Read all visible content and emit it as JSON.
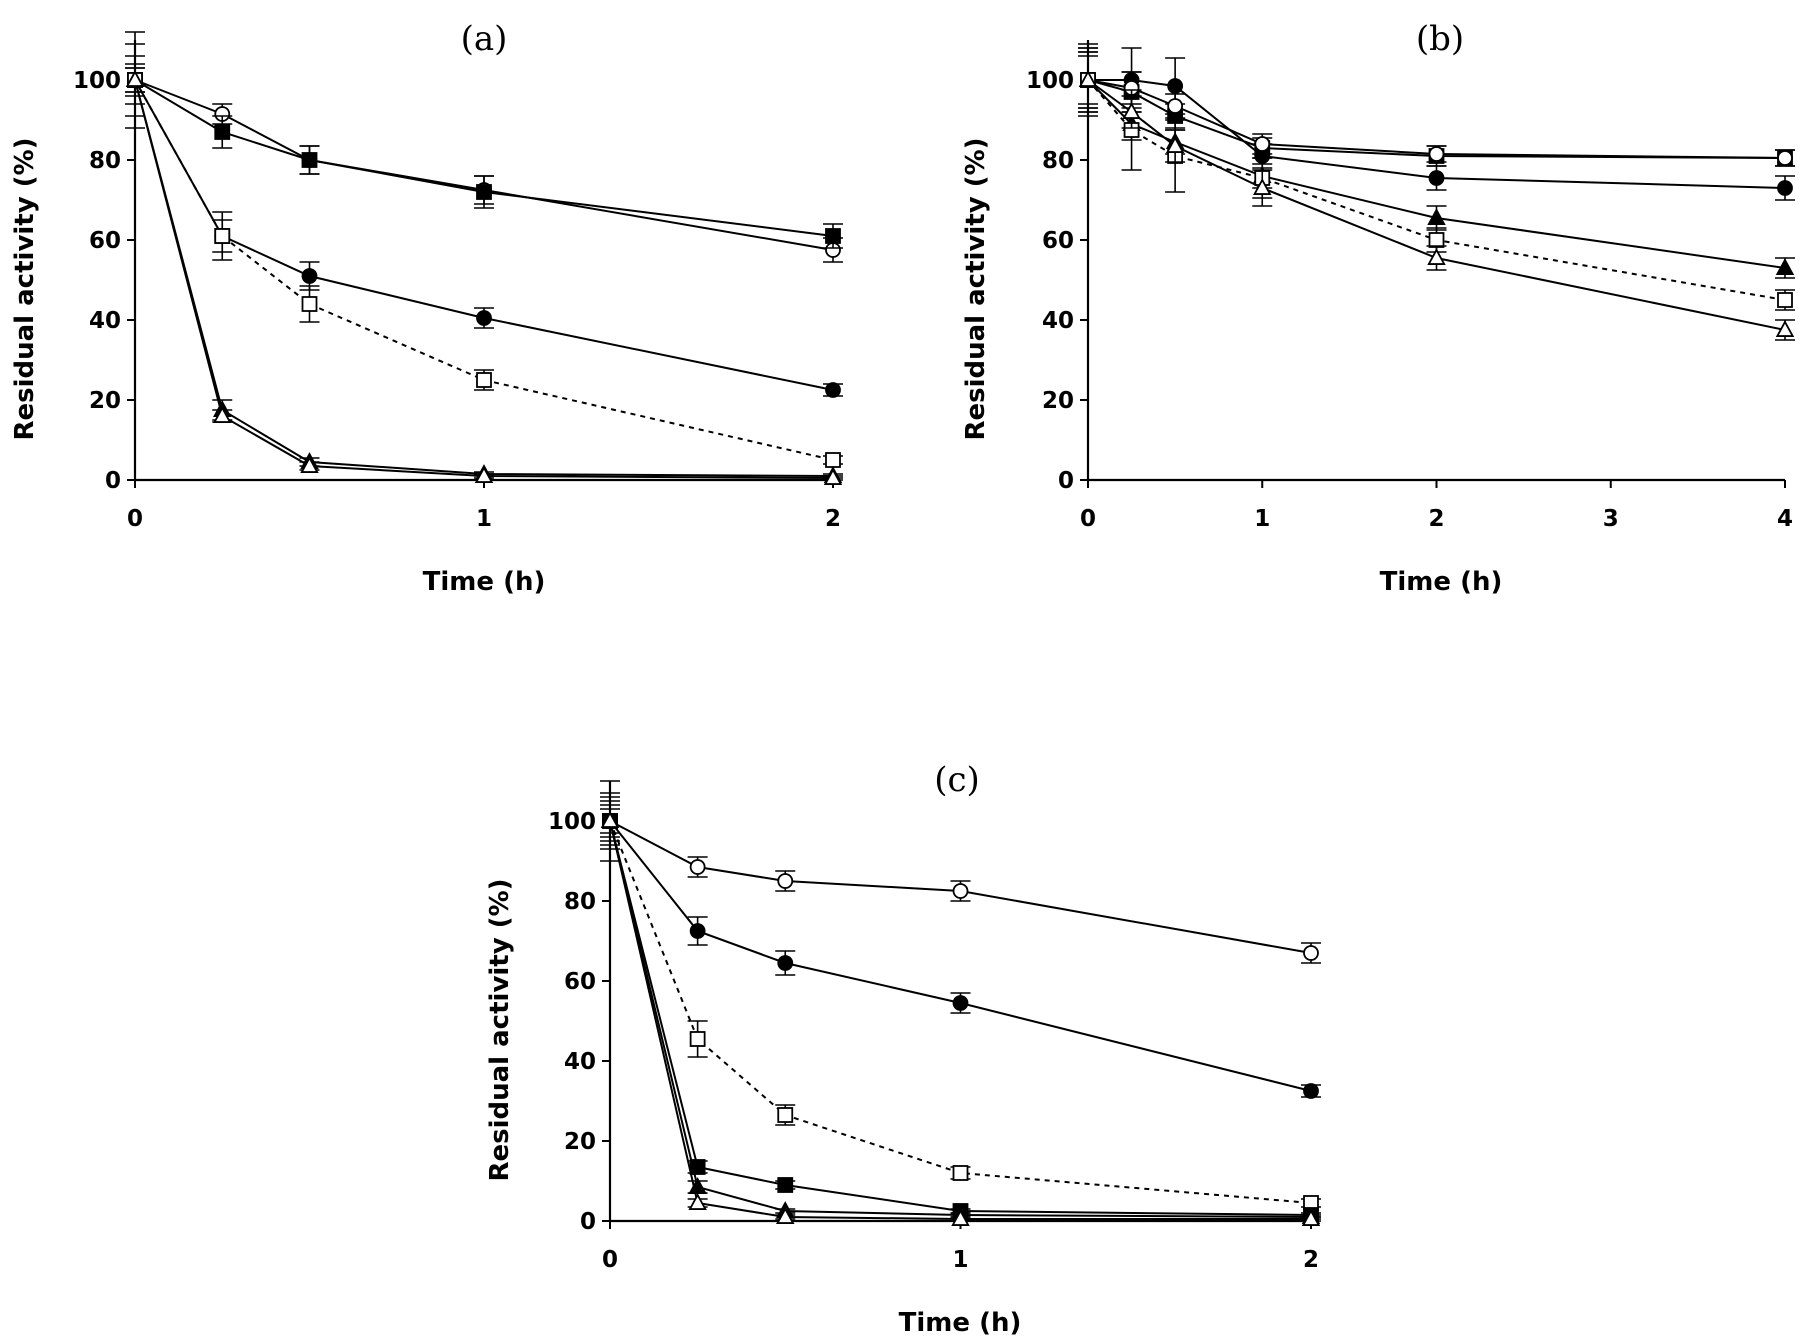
{
  "chart_data": [
    {
      "type": "line",
      "title": "(a)",
      "xlabel": "Time (h)",
      "ylabel": "Residual activity (%)",
      "xlim": [
        0,
        2
      ],
      "ylim": [
        0,
        110
      ],
      "xticks": [
        0,
        1,
        2
      ],
      "yticks": [
        0,
        20,
        40,
        60,
        80,
        100
      ],
      "grid": false,
      "legend": "none",
      "series": [
        {
          "marker": "circle-open",
          "dash": "solid",
          "x": [
            0,
            0.25,
            0.5,
            1,
            2
          ],
          "y": [
            100,
            91.5,
            80,
            72.5,
            57.5
          ],
          "err": [
            6,
            2.5,
            3.5,
            3.5,
            3
          ]
        },
        {
          "marker": "square-filled",
          "dash": "solid",
          "x": [
            0,
            0.25,
            0.5,
            1,
            2
          ],
          "y": [
            100,
            87,
            80,
            72,
            61
          ],
          "err": [
            9,
            4,
            3.5,
            4,
            3
          ]
        },
        {
          "marker": "square-filled",
          "dash": "solid",
          "x": [
            0,
            0.25
          ],
          "y": [
            100,
            61
          ],
          "err": [
            12,
            6
          ]
        },
        {
          "marker": "circle-filled",
          "dash": "solid",
          "x": [
            0.25,
            0.5,
            1,
            2
          ],
          "y": [
            61,
            51,
            40.5,
            22.5
          ],
          "err": [
            0,
            3.5,
            2.5,
            1.5
          ]
        },
        {
          "marker": "square-open",
          "dash": "dashed",
          "x": [
            0,
            0.25,
            0.5,
            1,
            2
          ],
          "y": [
            100,
            61,
            44,
            25,
            5
          ],
          "err": [
            4,
            4,
            4.5,
            2.5,
            1
          ]
        },
        {
          "marker": "triangle-filled",
          "dash": "solid",
          "x": [
            0,
            0.25,
            0.5,
            1,
            2
          ],
          "y": [
            100,
            17.5,
            4.5,
            1.5,
            1
          ],
          "err": [
            3,
            2.5,
            1,
            0.5,
            0.5
          ]
        },
        {
          "marker": "triangle-open",
          "dash": "solid",
          "x": [
            0,
            0.25,
            0.5,
            1,
            2
          ],
          "y": [
            100,
            16,
            3.5,
            1,
            0.5
          ],
          "err": [
            3,
            1.5,
            1,
            0.5,
            0.5
          ]
        }
      ]
    },
    {
      "type": "line",
      "title": "(b)",
      "xlabel": "Time (h)",
      "ylabel": "Residual activity (%)",
      "xlim": [
        0,
        4
      ],
      "ylim": [
        0,
        110
      ],
      "xticks": [
        0,
        1,
        2,
        3,
        4
      ],
      "yticks": [
        0,
        20,
        40,
        60,
        80,
        100
      ],
      "grid": false,
      "legend": "none",
      "series": [
        {
          "marker": "circle-filled",
          "dash": "solid",
          "x": [
            0,
            0.25,
            0.5,
            1,
            2,
            4
          ],
          "y": [
            100,
            100,
            98.5,
            81,
            75.5,
            73
          ],
          "err": [
            8,
            8,
            7,
            3,
            3,
            3
          ]
        },
        {
          "marker": "square-filled",
          "dash": "solid",
          "x": [
            0,
            0.25,
            0.5,
            1,
            2,
            4
          ],
          "y": [
            100,
            97,
            91,
            83,
            81,
            80.5
          ],
          "err": [
            9,
            5,
            3,
            2.5,
            2.5,
            2
          ]
        },
        {
          "marker": "circle-open",
          "dash": "solid",
          "x": [
            0,
            0.25,
            0.5,
            1,
            2,
            4
          ],
          "y": [
            100,
            98,
            93.5,
            84,
            81.5,
            80.5
          ],
          "err": [
            7,
            4,
            3,
            2.5,
            2,
            2
          ]
        },
        {
          "marker": "triangle-filled",
          "dash": "solid",
          "x": [
            0,
            0.25,
            0.5,
            1,
            2,
            4
          ],
          "y": [
            100,
            89,
            84.5,
            76,
            65.5,
            53
          ],
          "err": [
            7,
            4,
            3,
            3,
            3,
            2.5
          ]
        },
        {
          "marker": "square-open",
          "dash": "dashed",
          "x": [
            0,
            0.25,
            0.5,
            1,
            2,
            4
          ],
          "y": [
            100,
            87.5,
            81,
            75.5,
            60,
            45
          ],
          "err": [
            8,
            10,
            9,
            5,
            3,
            2.5
          ]
        },
        {
          "marker": "triangle-open",
          "dash": "solid",
          "x": [
            0,
            0.25,
            0.5,
            1,
            2,
            4
          ],
          "y": [
            100,
            92,
            83.5,
            73,
            55.5,
            37.5
          ],
          "err": [
            6,
            4,
            4,
            4.5,
            3,
            2.5
          ]
        }
      ]
    },
    {
      "type": "line",
      "title": "(c)",
      "xlabel": "Time (h)",
      "ylabel": "Residual activity (%)",
      "xlim": [
        0,
        2
      ],
      "ylim": [
        0,
        110
      ],
      "xticks": [
        0,
        1,
        2
      ],
      "yticks": [
        0,
        20,
        40,
        60,
        80,
        100
      ],
      "grid": false,
      "legend": "none",
      "series": [
        {
          "marker": "circle-open",
          "dash": "solid",
          "x": [
            0,
            0.25,
            0.5,
            1,
            2
          ],
          "y": [
            100,
            88.5,
            85,
            82.5,
            67
          ],
          "err": [
            7,
            2.5,
            2.5,
            2.5,
            2.5
          ]
        },
        {
          "marker": "circle-filled",
          "dash": "solid",
          "x": [
            0,
            0.25,
            0.5,
            1,
            2
          ],
          "y": [
            100,
            72.5,
            64.5,
            54.5,
            32.5
          ],
          "err": [
            10,
            3.5,
            3,
            2.5,
            1.5
          ]
        },
        {
          "marker": "square-open",
          "dash": "dashed",
          "x": [
            0,
            0.25,
            0.5,
            1,
            2
          ],
          "y": [
            100,
            45.5,
            26.5,
            12,
            4.5
          ],
          "err": [
            5,
            4.5,
            2.5,
            1.5,
            1
          ]
        },
        {
          "marker": "square-filled",
          "dash": "solid",
          "x": [
            0,
            0.25,
            0.5,
            1,
            2
          ],
          "y": [
            100,
            13.5,
            9,
            2.5,
            1.5
          ],
          "err": [
            6,
            1.5,
            1,
            0.5,
            0.5
          ]
        },
        {
          "marker": "triangle-filled",
          "dash": "solid",
          "x": [
            0,
            0.25,
            0.5,
            1,
            2
          ],
          "y": [
            100,
            8.5,
            2.5,
            1.5,
            1
          ],
          "err": [
            4,
            1.5,
            0.5,
            0.5,
            0.5
          ]
        },
        {
          "marker": "triangle-open",
          "dash": "solid",
          "x": [
            0,
            0.25,
            0.5,
            1,
            2
          ],
          "y": [
            100,
            4.5,
            1,
            0.5,
            0.5
          ],
          "err": [
            3,
            1,
            0.5,
            0.5,
            0.5
          ]
        }
      ]
    }
  ]
}
